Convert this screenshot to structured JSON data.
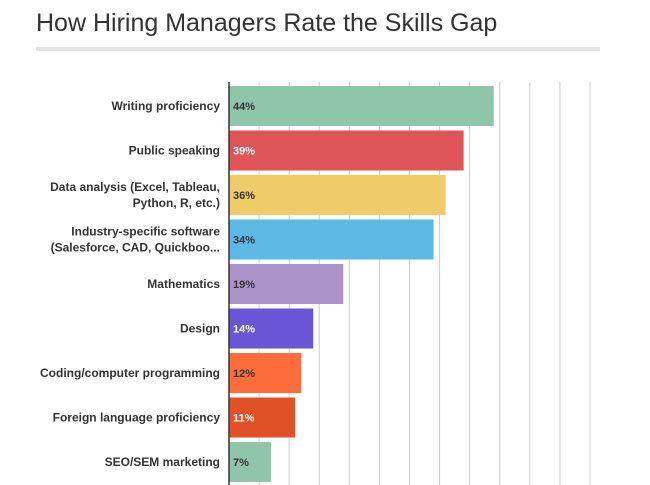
{
  "chart_data": {
    "type": "bar",
    "orientation": "horizontal",
    "title": "How Hiring Managers Rate the Skills Gap",
    "categories": [
      [
        "Writing proficiency"
      ],
      [
        "Public speaking"
      ],
      [
        "Data analysis (Excel, Tableau,",
        "Python, R, etc.)"
      ],
      [
        "Industry-specific software",
        "(Salesforce, CAD, Quickboo..."
      ],
      [
        "Mathematics"
      ],
      [
        "Design"
      ],
      [
        "Coding/computer programming"
      ],
      [
        "Foreign language proficiency"
      ],
      [
        "SEO/SEM marketing"
      ]
    ],
    "values": [
      44,
      39,
      36,
      34,
      19,
      14,
      12,
      11,
      7
    ],
    "value_labels": [
      "44%",
      "39%",
      "36%",
      "34%",
      "19%",
      "14%",
      "12%",
      "11%",
      "7%"
    ],
    "colors": [
      "#8fc5a8",
      "#de5458",
      "#f0cb6a",
      "#5db8e4",
      "#ab92c8",
      "#6a55d7",
      "#fc6d3b",
      "#e15128",
      "#8fc5a8"
    ],
    "value_label_colors": [
      "#333333",
      "#ffffff",
      "#333333",
      "#333333",
      "#333333",
      "#ffffff",
      "#333333",
      "#ffffff",
      "#333333"
    ],
    "xlim": [
      0,
      60
    ],
    "grid_step": 5,
    "grid": true,
    "xlabel": "",
    "ylabel": ""
  }
}
